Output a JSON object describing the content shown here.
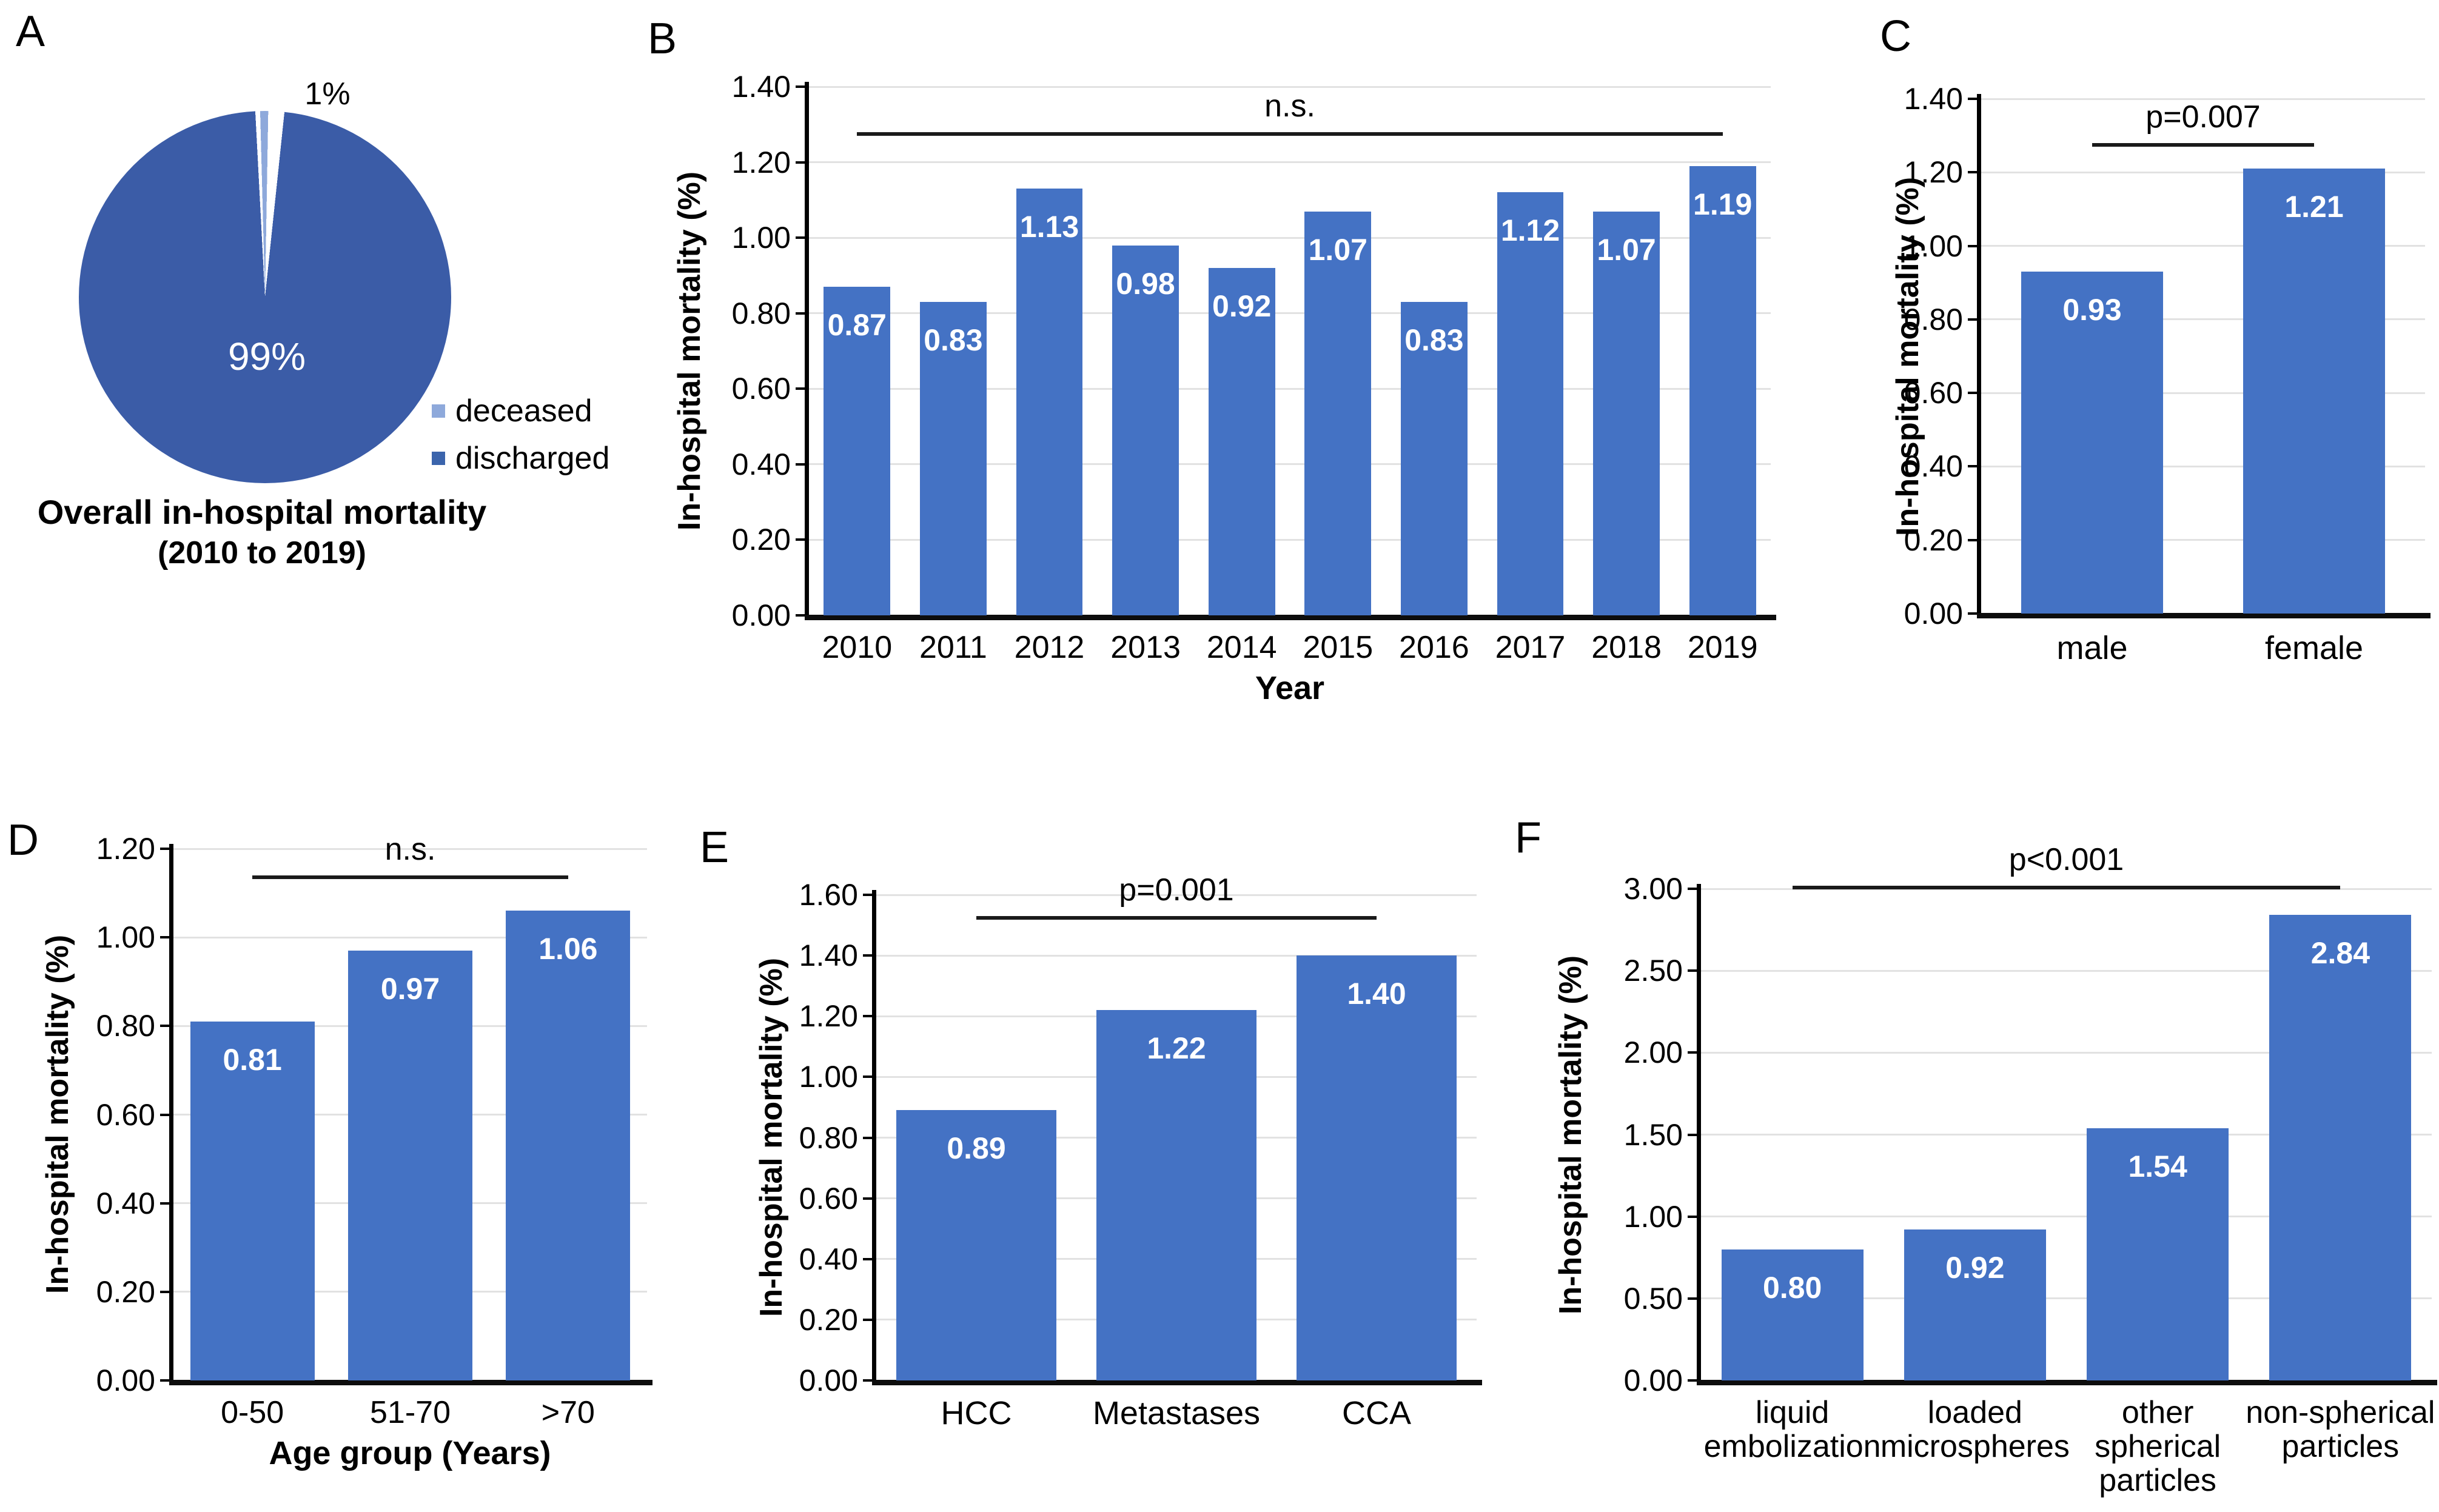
{
  "colors": {
    "bar_fill": "#4472C4",
    "bar_value_text": "#FFFFFF",
    "pie_discharged": "#3B5CA7",
    "pie_deceased": "#8EA9DB",
    "legend_discharged": "#3B64AC",
    "gridline": "#E2E2E2",
    "axis": "#000000",
    "significance_line": "#1A1A1A"
  },
  "chart_data": [
    {
      "panel": "A",
      "type": "pie",
      "title": "Overall in-hospital mortality",
      "subtitle": "(2010 to 2019)",
      "slices": [
        {
          "label": "deceased",
          "value": 1,
          "data_label": "1%"
        },
        {
          "label": "discharged",
          "value": 99,
          "data_label": "99%"
        }
      ],
      "legend": [
        {
          "label": "deceased"
        },
        {
          "label": "discharged"
        }
      ]
    },
    {
      "panel": "B",
      "type": "bar",
      "ylabel": "In-hospital mortality (%)",
      "xlabel": "Year",
      "ylim": [
        0,
        1.4
      ],
      "ystep": 0.2,
      "categories": [
        "2010",
        "2011",
        "2012",
        "2013",
        "2014",
        "2015",
        "2016",
        "2017",
        "2018",
        "2019"
      ],
      "values": [
        0.87,
        0.83,
        1.13,
        0.98,
        0.92,
        1.07,
        0.83,
        1.12,
        1.07,
        1.19
      ],
      "annotation": {
        "text": "n.s.",
        "from": 0,
        "to": 9,
        "y": 1.28
      }
    },
    {
      "panel": "C",
      "type": "bar",
      "ylabel": "In-hospital mortality (%)",
      "xlabel": "",
      "ylim": [
        0,
        1.4
      ],
      "ystep": 0.2,
      "categories": [
        "male",
        "female"
      ],
      "values": [
        0.93,
        1.21
      ],
      "annotation": {
        "text": "p=0.007",
        "from": 0,
        "to": 1,
        "y": 1.28
      }
    },
    {
      "panel": "D",
      "type": "bar",
      "ylabel": "In-hospital mortality (%)",
      "xlabel": "Age group (Years)",
      "ylim": [
        0,
        1.2
      ],
      "ystep": 0.2,
      "categories": [
        "0-50",
        "51-70",
        ">70"
      ],
      "values": [
        0.81,
        0.97,
        1.06
      ],
      "annotation": {
        "text": "n.s.",
        "from": 0,
        "to": 2,
        "y": 1.14
      }
    },
    {
      "panel": "E",
      "type": "bar",
      "ylabel": "In-hospital mortality (%)",
      "xlabel": "",
      "ylim": [
        0,
        1.6
      ],
      "ystep": 0.2,
      "categories": [
        "HCC",
        "Metastases",
        "CCA"
      ],
      "values": [
        0.89,
        1.22,
        1.4
      ],
      "annotation": {
        "text": "p=0.001",
        "from": 0,
        "to": 2,
        "y": 1.53
      }
    },
    {
      "panel": "F",
      "type": "bar",
      "ylabel": "In-hospital mortality (%)",
      "xlabel": "",
      "ylim": [
        0,
        3.0
      ],
      "ystep": 0.5,
      "categories": [
        "liquid\nembolization",
        "loaded\nmicrospheres",
        "other\nspherical\nparticles",
        "non-spherical\nparticles"
      ],
      "values": [
        0.8,
        0.92,
        1.54,
        2.84
      ],
      "annotation": {
        "text": "p<0.001",
        "from": 0,
        "to": 3,
        "y": 3.02
      }
    }
  ]
}
